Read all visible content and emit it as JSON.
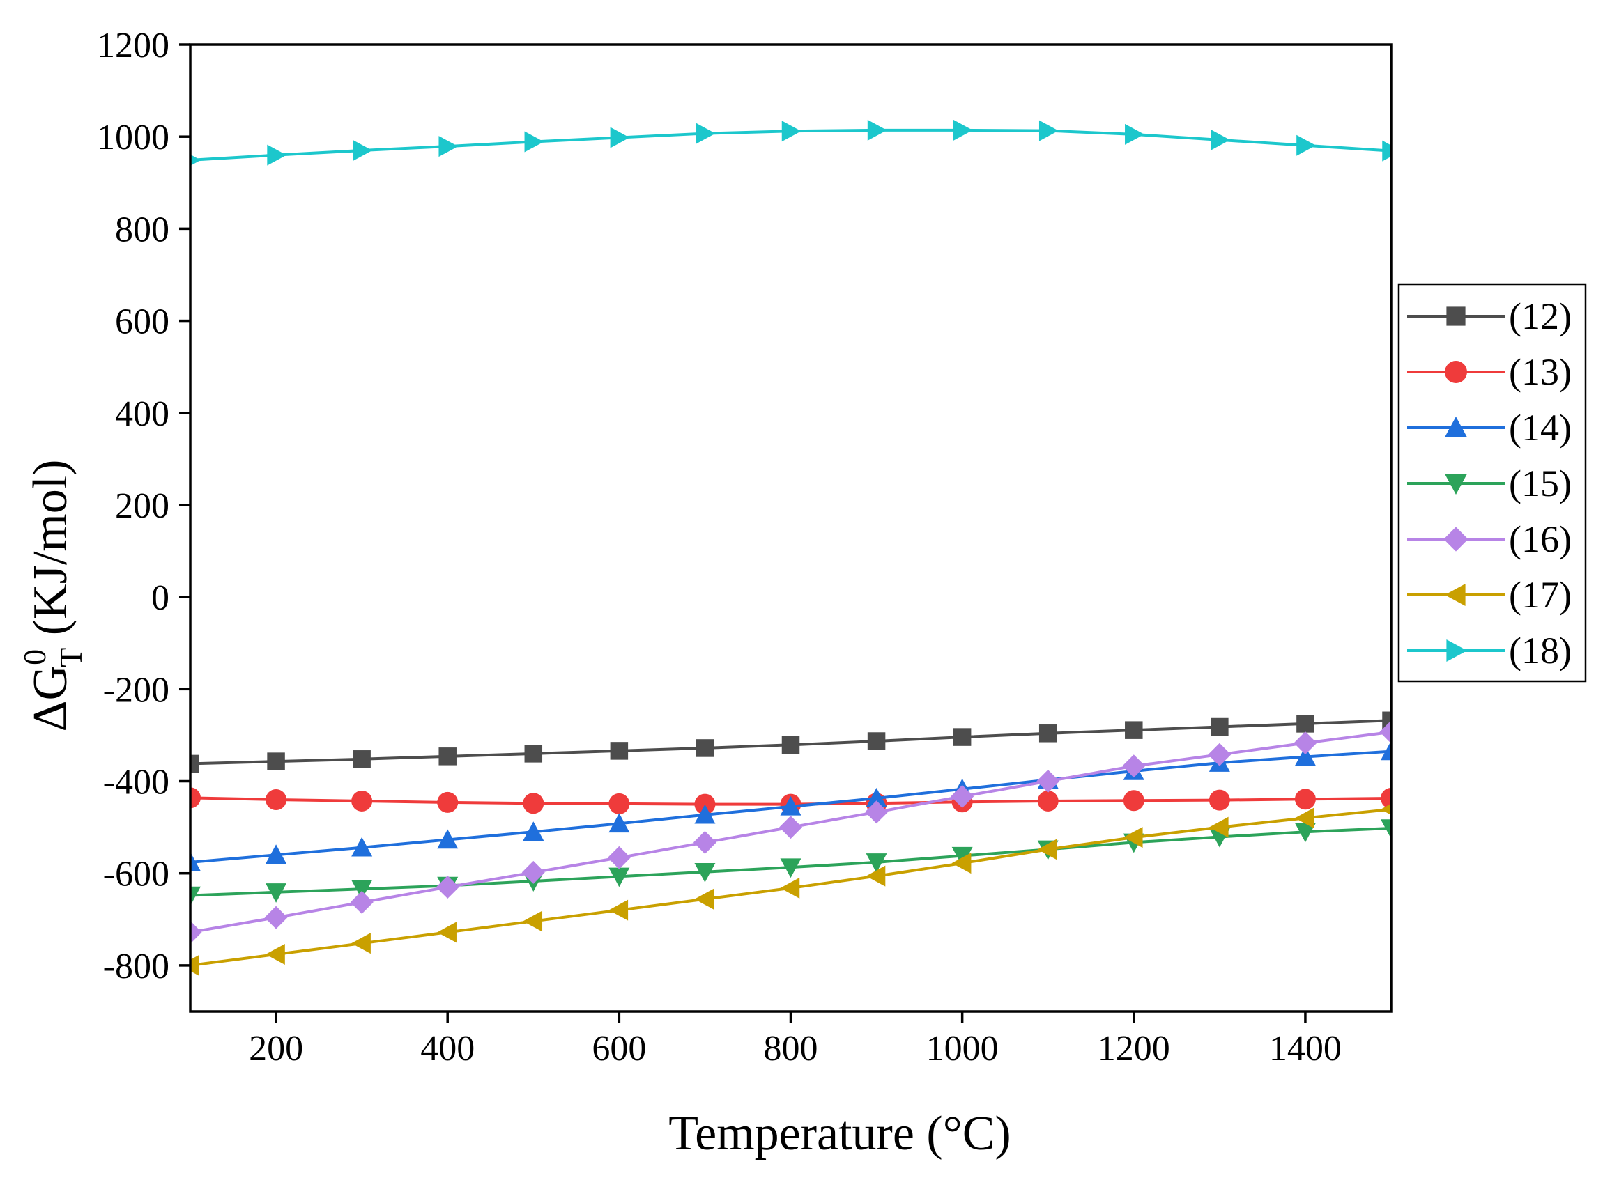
{
  "chart_data": {
    "type": "line",
    "title": "",
    "xlabel": "Temperature (°C)",
    "ylabel": {
      "base": "ΔG",
      "superscript": "0",
      "subscript": "T",
      "unit": " (KJ/mol)"
    },
    "xlim": [
      100,
      1500
    ],
    "ylim": [
      -900,
      1200
    ],
    "xticks": [
      200,
      400,
      600,
      800,
      1000,
      1200,
      1400
    ],
    "xtick_labels": [
      "200",
      "400",
      "600",
      "800",
      "1000",
      "1200",
      "1400"
    ],
    "yticks": [
      -800,
      -600,
      -400,
      -200,
      0,
      200,
      400,
      600,
      800,
      1000,
      1200
    ],
    "ytick_labels": [
      "-800",
      "-600",
      "-400",
      "-200",
      "0",
      "200",
      "400",
      "600",
      "800",
      "1000",
      "1200"
    ],
    "grid": false,
    "legend_position": "right",
    "x": [
      100,
      200,
      300,
      400,
      500,
      600,
      700,
      800,
      900,
      1000,
      1100,
      1200,
      1300,
      1400,
      1500
    ],
    "series": [
      {
        "name": "(12)",
        "color": "#4d4d4d",
        "marker": "square",
        "values": [
          -362,
          -357,
          -352,
          -346,
          -340,
          -334,
          -328,
          -321,
          -313,
          -304,
          -296,
          -289,
          -282,
          -275,
          -268
        ]
      },
      {
        "name": "(13)",
        "color": "#ef3b3b",
        "marker": "circle",
        "values": [
          -436,
          -440,
          -443,
          -446,
          -448,
          -449,
          -450,
          -450,
          -448,
          -445,
          -443,
          -442,
          -441,
          -439,
          -437
        ]
      },
      {
        "name": "(14)",
        "color": "#1f6fdc",
        "marker": "triangle-up",
        "values": [
          -576,
          -560,
          -544,
          -527,
          -510,
          -492,
          -473,
          -455,
          -437,
          -417,
          -397,
          -378,
          -360,
          -347,
          -335
        ]
      },
      {
        "name": "(15)",
        "color": "#2ca35a",
        "marker": "triangle-down",
        "values": [
          -648,
          -641,
          -634,
          -627,
          -617,
          -607,
          -597,
          -587,
          -576,
          -562,
          -548,
          -533,
          -521,
          -510,
          -502
        ]
      },
      {
        "name": "(16)",
        "color": "#b784e6",
        "marker": "diamond",
        "values": [
          -728,
          -696,
          -663,
          -630,
          -598,
          -566,
          -533,
          -500,
          -467,
          -433,
          -400,
          -367,
          -342,
          -317,
          -293
        ]
      },
      {
        "name": "(17)",
        "color": "#c9a000",
        "marker": "triangle-left",
        "values": [
          -800,
          -776,
          -752,
          -728,
          -704,
          -680,
          -656,
          -632,
          -606,
          -578,
          -548,
          -522,
          -500,
          -480,
          -461
        ]
      },
      {
        "name": "(18)",
        "color": "#1cc7cc",
        "marker": "triangle-right",
        "values": [
          949,
          960,
          970,
          979,
          989,
          998,
          1007,
          1012,
          1014,
          1014,
          1013,
          1005,
          993,
          981,
          969
        ]
      }
    ]
  }
}
